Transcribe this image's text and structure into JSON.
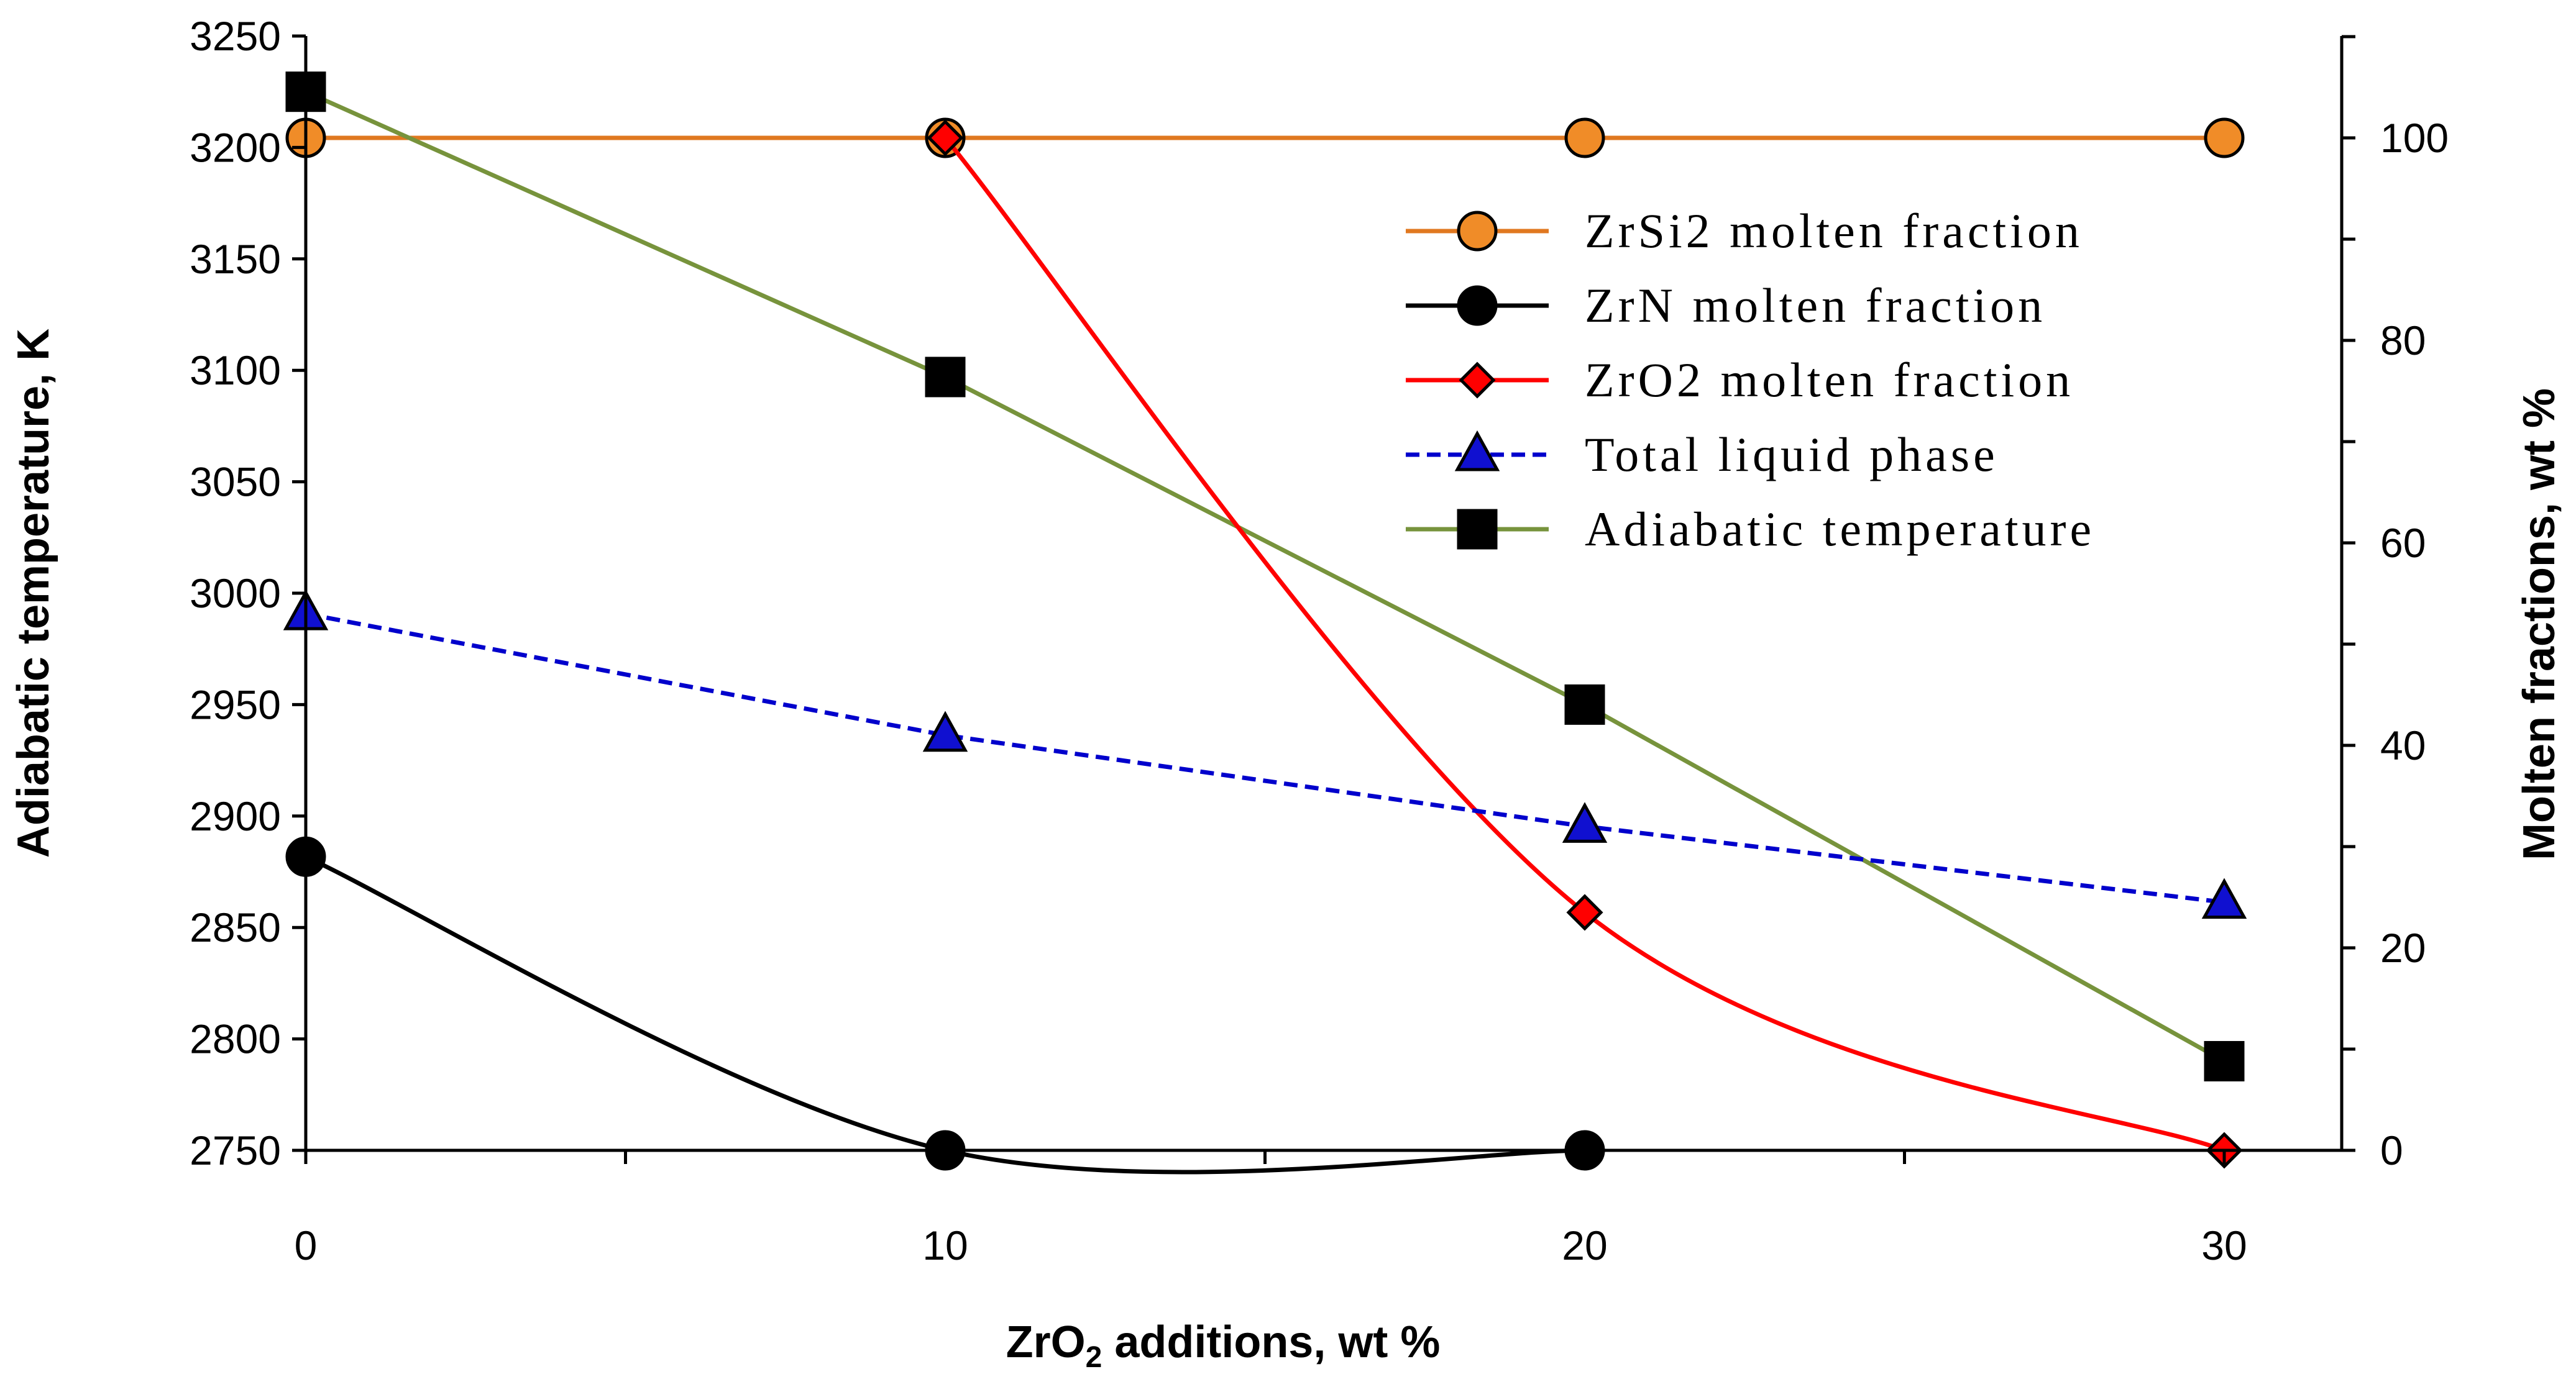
{
  "chart_data": {
    "type": "line",
    "title": "",
    "xlabel": {
      "main": "ZrO",
      "sub": "2",
      "rest": " additions, wt %"
    },
    "ylabel_left": "Adiabatic temperature, K",
    "ylabel_right": "Molten fractions, wt %",
    "x": [
      0,
      10,
      20,
      30
    ],
    "x_ticks": [
      "0",
      "10",
      "20",
      "30"
    ],
    "xlim": [
      0,
      32
    ],
    "y_left_lim": [
      2750,
      3250
    ],
    "y_left_ticks": [
      "2750",
      "2800",
      "2850",
      "2900",
      "2950",
      "3000",
      "3050",
      "3100",
      "3150",
      "3200",
      "3250"
    ],
    "y_right_lim": [
      0,
      110
    ],
    "y_right_ticks": [
      "0",
      "20",
      "40",
      "60",
      "80",
      "100"
    ],
    "legend_position": "top-right",
    "series": [
      {
        "name": "ZrSi2 molten fraction",
        "axis": "right",
        "values": [
          100,
          100,
          100,
          100
        ],
        "color": "#E07820",
        "marker": "circle",
        "marker_fill": "#F08C28",
        "dash": false,
        "smooth": false
      },
      {
        "name": "ZrN   molten fraction",
        "axis": "right",
        "values": [
          29,
          0,
          0,
          null
        ],
        "color": "#000000",
        "marker": "circle",
        "marker_fill": "#000000",
        "dash": false,
        "smooth": true
      },
      {
        "name": "ZrO2 molten fraction",
        "axis": "right",
        "values": [
          null,
          100,
          23.5,
          0
        ],
        "color": "#FF0000",
        "marker": "diamond",
        "marker_fill": "#FF0000",
        "dash": false,
        "smooth": true
      },
      {
        "name": "Total liquid phase",
        "axis": "right",
        "values": [
          53,
          41,
          32,
          24.5
        ],
        "color": "#0000CC",
        "marker": "triangle",
        "marker_fill": "#1010D0",
        "dash": true,
        "smooth": false
      },
      {
        "name": "Adiabatic temperature",
        "axis": "left",
        "values": [
          3225,
          3097,
          2950,
          2790
        ],
        "color": "#77933C",
        "marker": "square",
        "marker_fill": "#000000",
        "dash": false,
        "smooth": false
      }
    ]
  }
}
